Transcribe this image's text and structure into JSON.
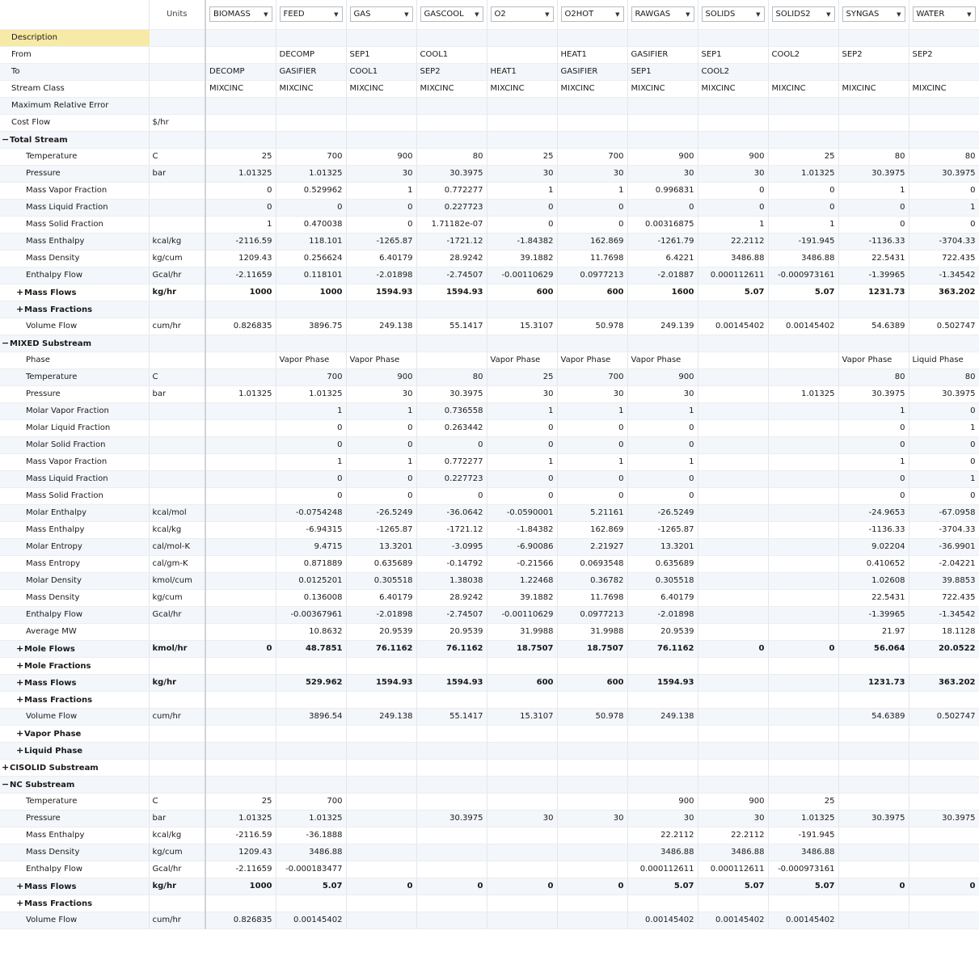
{
  "header": {
    "units_label": "Units",
    "streams": [
      "BIOMASS",
      "FEED",
      "GAS",
      "GASCOOL",
      "O2",
      "O2HOT",
      "RAWGAS",
      "SOLIDS",
      "SOLIDS2",
      "SYNGAS",
      "WATER"
    ]
  },
  "rows": [
    {
      "label": "Description",
      "units": "",
      "level": 1,
      "bold": false,
      "expander": "",
      "highlight": true,
      "align": "txt",
      "values": [
        "",
        "",
        "",
        "",
        "",
        "",
        "",
        "",
        "",
        "",
        ""
      ]
    },
    {
      "label": "From",
      "units": "",
      "level": 1,
      "bold": false,
      "expander": "",
      "align": "txt",
      "values": [
        "",
        "DECOMP",
        "SEP1",
        "COOL1",
        "",
        "HEAT1",
        "GASIFIER",
        "SEP1",
        "COOL2",
        "SEP2",
        "SEP2"
      ]
    },
    {
      "label": "To",
      "units": "",
      "level": 1,
      "bold": false,
      "expander": "",
      "align": "txt",
      "values": [
        "DECOMP",
        "GASIFIER",
        "COOL1",
        "SEP2",
        "HEAT1",
        "GASIFIER",
        "SEP1",
        "COOL2",
        "",
        "",
        ""
      ]
    },
    {
      "label": "Stream Class",
      "units": "",
      "level": 1,
      "bold": false,
      "expander": "",
      "align": "txt",
      "values": [
        "MIXCINC",
        "MIXCINC",
        "MIXCINC",
        "MIXCINC",
        "MIXCINC",
        "MIXCINC",
        "MIXCINC",
        "MIXCINC",
        "MIXCINC",
        "MIXCINC",
        "MIXCINC"
      ]
    },
    {
      "label": "Maximum Relative Error",
      "units": "",
      "level": 1,
      "bold": false,
      "expander": "",
      "align": "num",
      "values": [
        "",
        "",
        "",
        "",
        "",
        "",
        "",
        "",
        "",
        "",
        ""
      ]
    },
    {
      "label": "Cost Flow",
      "units": "$/hr",
      "level": 1,
      "bold": false,
      "expander": "",
      "align": "num",
      "values": [
        "",
        "",
        "",
        "",
        "",
        "",
        "",
        "",
        "",
        "",
        ""
      ]
    },
    {
      "label": "Total Stream",
      "units": "",
      "level": 0,
      "bold": true,
      "expander": "−",
      "align": "num",
      "values": [
        "",
        "",
        "",
        "",
        "",
        "",
        "",
        "",
        "",
        "",
        ""
      ]
    },
    {
      "label": "Temperature",
      "units": "C",
      "level": 2,
      "bold": false,
      "expander": "",
      "align": "num",
      "values": [
        "25",
        "700",
        "900",
        "80",
        "25",
        "700",
        "900",
        "900",
        "25",
        "80",
        "80"
      ]
    },
    {
      "label": "Pressure",
      "units": "bar",
      "level": 2,
      "bold": false,
      "expander": "",
      "align": "num",
      "values": [
        "1.01325",
        "1.01325",
        "30",
        "30.3975",
        "30",
        "30",
        "30",
        "30",
        "1.01325",
        "30.3975",
        "30.3975"
      ]
    },
    {
      "label": "Mass Vapor Fraction",
      "units": "",
      "level": 2,
      "bold": false,
      "expander": "",
      "align": "num",
      "values": [
        "0",
        "0.529962",
        "1",
        "0.772277",
        "1",
        "1",
        "0.996831",
        "0",
        "0",
        "1",
        "0"
      ]
    },
    {
      "label": "Mass Liquid Fraction",
      "units": "",
      "level": 2,
      "bold": false,
      "expander": "",
      "align": "num",
      "values": [
        "0",
        "0",
        "0",
        "0.227723",
        "0",
        "0",
        "0",
        "0",
        "0",
        "0",
        "1"
      ]
    },
    {
      "label": "Mass Solid Fraction",
      "units": "",
      "level": 2,
      "bold": false,
      "expander": "",
      "align": "num",
      "values": [
        "1",
        "0.470038",
        "0",
        "1.71182e-07",
        "0",
        "0",
        "0.00316875",
        "1",
        "1",
        "0",
        "0"
      ]
    },
    {
      "label": "Mass Enthalpy",
      "units": "kcal/kg",
      "level": 2,
      "bold": false,
      "expander": "",
      "align": "num",
      "values": [
        "-2116.59",
        "118.101",
        "-1265.87",
        "-1721.12",
        "-1.84382",
        "162.869",
        "-1261.79",
        "22.2112",
        "-191.945",
        "-1136.33",
        "-3704.33"
      ]
    },
    {
      "label": "Mass Density",
      "units": "kg/cum",
      "level": 2,
      "bold": false,
      "expander": "",
      "align": "num",
      "values": [
        "1209.43",
        "0.256624",
        "6.40179",
        "28.9242",
        "39.1882",
        "11.7698",
        "6.4221",
        "3486.88",
        "3486.88",
        "22.5431",
        "722.435"
      ]
    },
    {
      "label": "Enthalpy Flow",
      "units": "Gcal/hr",
      "level": 2,
      "bold": false,
      "expander": "",
      "align": "num",
      "values": [
        "-2.11659",
        "0.118101",
        "-2.01898",
        "-2.74507",
        "-0.00110629",
        "0.0977213",
        "-2.01887",
        "0.000112611",
        "-0.000973161",
        "-1.39965",
        "-1.34542"
      ]
    },
    {
      "label": "Mass Flows",
      "units": "kg/hr",
      "level": 2,
      "bold": true,
      "expander": "+",
      "align": "num",
      "values": [
        "1000",
        "1000",
        "1594.93",
        "1594.93",
        "600",
        "600",
        "1600",
        "5.07",
        "5.07",
        "1231.73",
        "363.202"
      ]
    },
    {
      "label": "Mass Fractions",
      "units": "",
      "level": 2,
      "bold": true,
      "expander": "+",
      "align": "num",
      "values": [
        "",
        "",
        "",
        "",
        "",
        "",
        "",
        "",
        "",
        "",
        ""
      ]
    },
    {
      "label": "Volume Flow",
      "units": "cum/hr",
      "level": 2,
      "bold": false,
      "expander": "",
      "align": "num",
      "values": [
        "0.826835",
        "3896.75",
        "249.138",
        "55.1417",
        "15.3107",
        "50.978",
        "249.139",
        "0.00145402",
        "0.00145402",
        "54.6389",
        "0.502747"
      ]
    },
    {
      "label": "MIXED Substream",
      "units": "",
      "level": 0,
      "bold": true,
      "expander": "−",
      "align": "num",
      "values": [
        "",
        "",
        "",
        "",
        "",
        "",
        "",
        "",
        "",
        "",
        ""
      ]
    },
    {
      "label": "Phase",
      "units": "",
      "level": 2,
      "bold": false,
      "expander": "",
      "align": "txt",
      "values": [
        "",
        "Vapor Phase",
        "Vapor Phase",
        "",
        "Vapor Phase",
        "Vapor Phase",
        "Vapor Phase",
        "",
        "",
        "Vapor Phase",
        "Liquid Phase"
      ]
    },
    {
      "label": "Temperature",
      "units": "C",
      "level": 2,
      "bold": false,
      "expander": "",
      "align": "num",
      "values": [
        "",
        "700",
        "900",
        "80",
        "25",
        "700",
        "900",
        "",
        "",
        "80",
        "80"
      ]
    },
    {
      "label": "Pressure",
      "units": "bar",
      "level": 2,
      "bold": false,
      "expander": "",
      "align": "num",
      "values": [
        "1.01325",
        "1.01325",
        "30",
        "30.3975",
        "30",
        "30",
        "30",
        "",
        "1.01325",
        "30.3975",
        "30.3975"
      ]
    },
    {
      "label": "Molar Vapor Fraction",
      "units": "",
      "level": 2,
      "bold": false,
      "expander": "",
      "align": "num",
      "values": [
        "",
        "1",
        "1",
        "0.736558",
        "1",
        "1",
        "1",
        "",
        "",
        "1",
        "0"
      ]
    },
    {
      "label": "Molar Liquid Fraction",
      "units": "",
      "level": 2,
      "bold": false,
      "expander": "",
      "align": "num",
      "values": [
        "",
        "0",
        "0",
        "0.263442",
        "0",
        "0",
        "0",
        "",
        "",
        "0",
        "1"
      ]
    },
    {
      "label": "Molar Solid Fraction",
      "units": "",
      "level": 2,
      "bold": false,
      "expander": "",
      "align": "num",
      "values": [
        "",
        "0",
        "0",
        "0",
        "0",
        "0",
        "0",
        "",
        "",
        "0",
        "0"
      ]
    },
    {
      "label": "Mass Vapor Fraction",
      "units": "",
      "level": 2,
      "bold": false,
      "expander": "",
      "align": "num",
      "values": [
        "",
        "1",
        "1",
        "0.772277",
        "1",
        "1",
        "1",
        "",
        "",
        "1",
        "0"
      ]
    },
    {
      "label": "Mass Liquid Fraction",
      "units": "",
      "level": 2,
      "bold": false,
      "expander": "",
      "align": "num",
      "values": [
        "",
        "0",
        "0",
        "0.227723",
        "0",
        "0",
        "0",
        "",
        "",
        "0",
        "1"
      ]
    },
    {
      "label": "Mass Solid Fraction",
      "units": "",
      "level": 2,
      "bold": false,
      "expander": "",
      "align": "num",
      "values": [
        "",
        "0",
        "0",
        "0",
        "0",
        "0",
        "0",
        "",
        "",
        "0",
        "0"
      ]
    },
    {
      "label": "Molar Enthalpy",
      "units": "kcal/mol",
      "level": 2,
      "bold": false,
      "expander": "",
      "align": "num",
      "values": [
        "",
        "-0.0754248",
        "-26.5249",
        "-36.0642",
        "-0.0590001",
        "5.21161",
        "-26.5249",
        "",
        "",
        "-24.9653",
        "-67.0958"
      ]
    },
    {
      "label": "Mass Enthalpy",
      "units": "kcal/kg",
      "level": 2,
      "bold": false,
      "expander": "",
      "align": "num",
      "values": [
        "",
        "-6.94315",
        "-1265.87",
        "-1721.12",
        "-1.84382",
        "162.869",
        "-1265.87",
        "",
        "",
        "-1136.33",
        "-3704.33"
      ]
    },
    {
      "label": "Molar Entropy",
      "units": "cal/mol-K",
      "level": 2,
      "bold": false,
      "expander": "",
      "align": "num",
      "values": [
        "",
        "9.4715",
        "13.3201",
        "-3.0995",
        "-6.90086",
        "2.21927",
        "13.3201",
        "",
        "",
        "9.02204",
        "-36.9901"
      ]
    },
    {
      "label": "Mass Entropy",
      "units": "cal/gm-K",
      "level": 2,
      "bold": false,
      "expander": "",
      "align": "num",
      "values": [
        "",
        "0.871889",
        "0.635689",
        "-0.14792",
        "-0.21566",
        "0.0693548",
        "0.635689",
        "",
        "",
        "0.410652",
        "-2.04221"
      ]
    },
    {
      "label": "Molar Density",
      "units": "kmol/cum",
      "level": 2,
      "bold": false,
      "expander": "",
      "align": "num",
      "values": [
        "",
        "0.0125201",
        "0.305518",
        "1.38038",
        "1.22468",
        "0.36782",
        "0.305518",
        "",
        "",
        "1.02608",
        "39.8853"
      ]
    },
    {
      "label": "Mass Density",
      "units": "kg/cum",
      "level": 2,
      "bold": false,
      "expander": "",
      "align": "num",
      "values": [
        "",
        "0.136008",
        "6.40179",
        "28.9242",
        "39.1882",
        "11.7698",
        "6.40179",
        "",
        "",
        "22.5431",
        "722.435"
      ]
    },
    {
      "label": "Enthalpy Flow",
      "units": "Gcal/hr",
      "level": 2,
      "bold": false,
      "expander": "",
      "align": "num",
      "values": [
        "",
        "-0.00367961",
        "-2.01898",
        "-2.74507",
        "-0.00110629",
        "0.0977213",
        "-2.01898",
        "",
        "",
        "-1.39965",
        "-1.34542"
      ]
    },
    {
      "label": "Average MW",
      "units": "",
      "level": 2,
      "bold": false,
      "expander": "",
      "align": "num",
      "values": [
        "",
        "10.8632",
        "20.9539",
        "20.9539",
        "31.9988",
        "31.9988",
        "20.9539",
        "",
        "",
        "21.97",
        "18.1128"
      ]
    },
    {
      "label": "Mole Flows",
      "units": "kmol/hr",
      "level": 2,
      "bold": true,
      "expander": "+",
      "align": "num",
      "values": [
        "0",
        "48.7851",
        "76.1162",
        "76.1162",
        "18.7507",
        "18.7507",
        "76.1162",
        "0",
        "0",
        "56.064",
        "20.0522"
      ]
    },
    {
      "label": "Mole Fractions",
      "units": "",
      "level": 2,
      "bold": true,
      "expander": "+",
      "align": "num",
      "values": [
        "",
        "",
        "",
        "",
        "",
        "",
        "",
        "",
        "",
        "",
        ""
      ]
    },
    {
      "label": "Mass Flows",
      "units": "kg/hr",
      "level": 2,
      "bold": true,
      "expander": "+",
      "align": "num",
      "values": [
        "",
        "529.962",
        "1594.93",
        "1594.93",
        "600",
        "600",
        "1594.93",
        "",
        "",
        "1231.73",
        "363.202"
      ]
    },
    {
      "label": "Mass Fractions",
      "units": "",
      "level": 2,
      "bold": true,
      "expander": "+",
      "align": "num",
      "values": [
        "",
        "",
        "",
        "",
        "",
        "",
        "",
        "",
        "",
        "",
        ""
      ]
    },
    {
      "label": "Volume Flow",
      "units": "cum/hr",
      "level": 2,
      "bold": false,
      "expander": "",
      "align": "num",
      "values": [
        "",
        "3896.54",
        "249.138",
        "55.1417",
        "15.3107",
        "50.978",
        "249.138",
        "",
        "",
        "54.6389",
        "0.502747"
      ]
    },
    {
      "label": "Vapor Phase",
      "units": "",
      "level": 2,
      "bold": true,
      "expander": "+",
      "align": "num",
      "values": [
        "",
        "",
        "",
        "",
        "",
        "",
        "",
        "",
        "",
        "",
        ""
      ]
    },
    {
      "label": "Liquid Phase",
      "units": "",
      "level": 2,
      "bold": true,
      "expander": "+",
      "align": "num",
      "values": [
        "",
        "",
        "",
        "",
        "",
        "",
        "",
        "",
        "",
        "",
        ""
      ]
    },
    {
      "label": "CISOLID Substream",
      "units": "",
      "level": 0,
      "bold": true,
      "expander": "+",
      "align": "num",
      "values": [
        "",
        "",
        "",
        "",
        "",
        "",
        "",
        "",
        "",
        "",
        ""
      ]
    },
    {
      "label": "NC Substream",
      "units": "",
      "level": 0,
      "bold": true,
      "expander": "−",
      "align": "num",
      "values": [
        "",
        "",
        "",
        "",
        "",
        "",
        "",
        "",
        "",
        "",
        ""
      ]
    },
    {
      "label": "Temperature",
      "units": "C",
      "level": 2,
      "bold": false,
      "expander": "",
      "align": "num",
      "values": [
        "25",
        "700",
        "",
        "",
        "",
        "",
        "900",
        "900",
        "25",
        "",
        ""
      ]
    },
    {
      "label": "Pressure",
      "units": "bar",
      "level": 2,
      "bold": false,
      "expander": "",
      "align": "num",
      "values": [
        "1.01325",
        "1.01325",
        "",
        "30.3975",
        "30",
        "30",
        "30",
        "30",
        "1.01325",
        "30.3975",
        "30.3975"
      ]
    },
    {
      "label": "Mass Enthalpy",
      "units": "kcal/kg",
      "level": 2,
      "bold": false,
      "expander": "",
      "align": "num",
      "values": [
        "-2116.59",
        "-36.1888",
        "",
        "",
        "",
        "",
        "22.2112",
        "22.2112",
        "-191.945",
        "",
        ""
      ]
    },
    {
      "label": "Mass Density",
      "units": "kg/cum",
      "level": 2,
      "bold": false,
      "expander": "",
      "align": "num",
      "values": [
        "1209.43",
        "3486.88",
        "",
        "",
        "",
        "",
        "3486.88",
        "3486.88",
        "3486.88",
        "",
        ""
      ]
    },
    {
      "label": "Enthalpy Flow",
      "units": "Gcal/hr",
      "level": 2,
      "bold": false,
      "expander": "",
      "align": "num",
      "values": [
        "-2.11659",
        "-0.000183477",
        "",
        "",
        "",
        "",
        "0.000112611",
        "0.000112611",
        "-0.000973161",
        "",
        ""
      ]
    },
    {
      "label": "Mass Flows",
      "units": "kg/hr",
      "level": 2,
      "bold": true,
      "expander": "+",
      "align": "num",
      "values": [
        "1000",
        "5.07",
        "0",
        "0",
        "0",
        "0",
        "5.07",
        "5.07",
        "5.07",
        "0",
        "0"
      ]
    },
    {
      "label": "Mass Fractions",
      "units": "",
      "level": 2,
      "bold": true,
      "expander": "+",
      "align": "num",
      "values": [
        "",
        "",
        "",
        "",
        "",
        "",
        "",
        "",
        "",
        "",
        ""
      ]
    },
    {
      "label": "Volume Flow",
      "units": "cum/hr",
      "level": 2,
      "bold": false,
      "expander": "",
      "align": "num",
      "values": [
        "0.826835",
        "0.00145402",
        "",
        "",
        "",
        "",
        "0.00145402",
        "0.00145402",
        "0.00145402",
        "",
        ""
      ]
    }
  ]
}
